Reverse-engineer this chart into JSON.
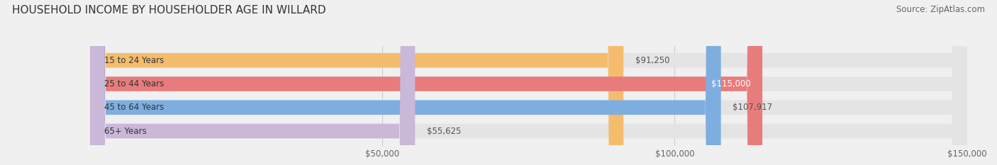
{
  "title": "HOUSEHOLD INCOME BY HOUSEHOLDER AGE IN WILLARD",
  "source": "Source: ZipAtlas.com",
  "categories": [
    "15 to 24 Years",
    "25 to 44 Years",
    "45 to 64 Years",
    "65+ Years"
  ],
  "values": [
    91250,
    115000,
    107917,
    55625
  ],
  "bar_colors": [
    "#f5bc6e",
    "#e87c7c",
    "#7eaee0",
    "#c9b8d8"
  ],
  "bar_labels": [
    "$91,250",
    "$115,000",
    "$107,917",
    "$55,625"
  ],
  "label_colors": [
    "#555555",
    "#ffffff",
    "#555555",
    "#555555"
  ],
  "x_max": 150000,
  "x_ticks": [
    50000,
    100000,
    150000
  ],
  "x_tick_labels": [
    "$50,000",
    "$100,000",
    "$150,000"
  ],
  "background_color": "#f0f0f0",
  "bar_background_color": "#e4e4e4",
  "title_fontsize": 11,
  "source_fontsize": 8.5,
  "label_fontsize": 8.5,
  "tick_fontsize": 8.5,
  "bar_height": 0.62
}
